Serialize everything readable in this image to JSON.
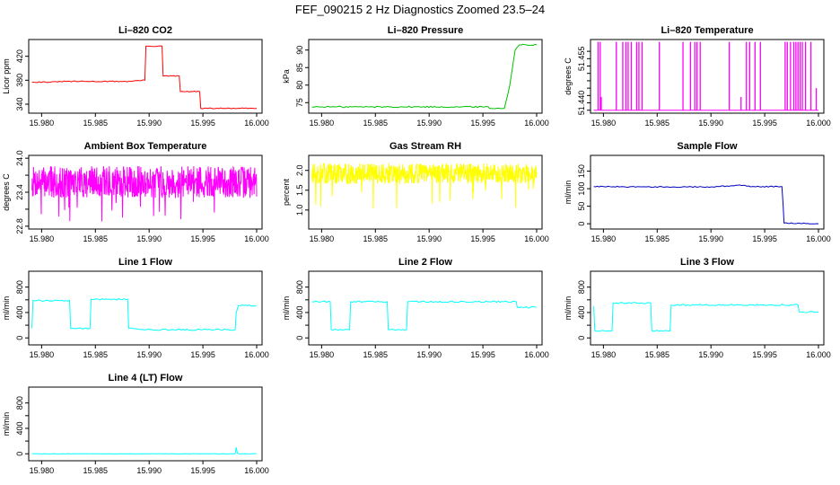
{
  "figure": {
    "title": "FEF_090215  2 Hz Diagnostics Zoomed 23.5–24"
  },
  "chart_data": [
    {
      "type": "line",
      "title": "Li–820 CO2",
      "ylabel": "Licor ppm",
      "xlim": [
        15.9788,
        16.0005
      ],
      "ylim": [
        325,
        448
      ],
      "x_ticks": [
        15.98,
        15.985,
        15.99,
        15.995,
        16.0
      ],
      "x_tick_labels": [
        "15.980",
        "15.985",
        "15.990",
        "15.995",
        "16.000"
      ],
      "y_ticks": [
        340,
        380,
        420
      ],
      "y_tick_labels": [
        "340",
        "380",
        "420"
      ],
      "color": "#ff0000",
      "noise": 0.8,
      "series": [
        {
          "name": "CO2",
          "x": [
            15.9791,
            15.9815,
            15.9816,
            15.9883,
            15.9886,
            15.9896,
            15.9897,
            15.9912,
            15.9913,
            15.9928,
            15.9929,
            15.9947,
            15.9948,
            16.0
          ],
          "y": [
            377,
            377,
            378,
            378,
            379,
            380,
            437,
            437,
            387,
            387,
            361,
            361,
            333,
            333
          ]
        }
      ]
    },
    {
      "type": "line",
      "title": "Li–820 Pressure",
      "ylabel": "kPa",
      "xlim": [
        15.9788,
        16.0005
      ],
      "ylim": [
        72,
        93
      ],
      "x_ticks": [
        15.98,
        15.985,
        15.99,
        15.995,
        16.0
      ],
      "x_tick_labels": [
        "15.980",
        "15.985",
        "15.990",
        "15.995",
        "16.000"
      ],
      "y_ticks": [
        75,
        80,
        85,
        90
      ],
      "y_tick_labels": [
        "75",
        "80",
        "85",
        "90"
      ],
      "color": "#00c000",
      "noise": 0.2,
      "series": [
        {
          "name": "Pressure",
          "x": [
            15.9791,
            15.9955,
            15.9956,
            15.997,
            15.9975,
            15.998,
            15.9984,
            16.0
          ],
          "y": [
            73.8,
            73.8,
            73.4,
            73.4,
            80,
            90,
            91.5,
            91.5
          ]
        }
      ]
    },
    {
      "type": "line",
      "title": "Li–820 Temperature",
      "ylabel": "degrees C",
      "xlim": [
        15.9788,
        16.0005
      ],
      "ylim": [
        51.4365,
        51.4615
      ],
      "x_ticks": [
        15.98,
        15.985,
        15.99,
        15.995,
        16.0
      ],
      "x_tick_labels": [
        "15.980",
        "15.985",
        "15.990",
        "15.995",
        "16.000"
      ],
      "y_ticks": [
        51.44,
        51.455
      ],
      "y_tick_labels": [
        "51.440",
        "51.455"
      ],
      "y_minor_ticks": [
        51.4375,
        51.4425,
        51.445,
        51.4475,
        51.45,
        51.4525,
        51.4575
      ],
      "color": "#ff00ff",
      "spikes": {
        "base": 51.4375,
        "top": 51.4607,
        "x": [
          15.9795,
          15.9797,
          15.9812,
          15.9818,
          15.9821,
          15.9823,
          15.9826,
          15.9831,
          15.9833,
          15.9836,
          15.9852,
          15.9874,
          15.9881,
          15.9885,
          15.9887,
          15.989,
          15.9917,
          15.9933,
          15.9936,
          15.9941,
          15.9946,
          15.9969,
          15.9971,
          15.9974,
          15.9977,
          15.9979,
          15.9981,
          15.9983,
          15.9985,
          15.9988,
          15.9993
        ],
        "partial": [
          {
            "x": 15.9798,
            "y": 51.442
          },
          {
            "x": 15.9928,
            "y": 51.442
          },
          {
            "x": 15.9998,
            "y": 51.445
          }
        ]
      },
      "series": []
    },
    {
      "type": "line",
      "title": "Ambient Box Temperature",
      "ylabel": "degrees C",
      "xlim": [
        15.9788,
        16.0005
      ],
      "ylim": [
        22.75,
        24.05
      ],
      "x_ticks": [
        15.98,
        15.985,
        15.99,
        15.995,
        16.0
      ],
      "x_tick_labels": [
        "15.980",
        "15.985",
        "15.990",
        "15.995",
        "16.000"
      ],
      "y_ticks": [
        22.8,
        23.4,
        24.0
      ],
      "y_tick_labels": [
        "22.8",
        "23.4",
        "24.0"
      ],
      "y_minor_ticks": [
        23.1,
        23.7
      ],
      "color": "#ff00ff",
      "band": {
        "center": 23.58,
        "spread": 0.28,
        "spike": 0.7,
        "seed": 7
      },
      "series": []
    },
    {
      "type": "line",
      "title": "Gas Stream RH",
      "ylabel": "percent",
      "xlim": [
        15.9788,
        16.0005
      ],
      "ylim": [
        0.52,
        2.38
      ],
      "x_ticks": [
        15.98,
        15.985,
        15.99,
        15.995,
        16.0
      ],
      "x_tick_labels": [
        "15.980",
        "15.985",
        "15.990",
        "15.995",
        "16.000"
      ],
      "y_ticks": [
        1.0,
        1.5,
        2.0
      ],
      "y_tick_labels": [
        "1.0",
        "1.5",
        "2.0"
      ],
      "color": "#ffff00",
      "band": {
        "center": 1.92,
        "spread": 0.26,
        "spike": 0.9,
        "seed": 13
      },
      "series": []
    },
    {
      "type": "line",
      "title": "Sample Flow",
      "ylabel": "ml/min",
      "xlim": [
        15.9788,
        16.0005
      ],
      "ylim": [
        -15,
        195
      ],
      "x_ticks": [
        15.98,
        15.985,
        15.99,
        15.995,
        16.0
      ],
      "x_tick_labels": [
        "15.980",
        "15.985",
        "15.990",
        "15.995",
        "16.000"
      ],
      "y_ticks": [
        0,
        50,
        100,
        150
      ],
      "y_tick_labels": [
        "0",
        "50",
        "100",
        "150"
      ],
      "color": "#0000c0",
      "noise": 1.5,
      "series": [
        {
          "name": "Sample Flow",
          "x": [
            15.9791,
            15.986,
            15.99,
            15.9918,
            15.9925,
            15.994,
            15.9965,
            15.9966,
            15.9967,
            15.9968,
            16.0
          ],
          "y": [
            106,
            105,
            105,
            108,
            110,
            106,
            106,
            106,
            60,
            2,
            0
          ]
        }
      ]
    },
    {
      "type": "line",
      "title": "Line 1 Flow",
      "ylabel": "ml/min",
      "xlim": [
        15.9788,
        16.0005
      ],
      "ylim": [
        -110,
        1050
      ],
      "x_ticks": [
        15.98,
        15.985,
        15.99,
        15.995,
        16.0
      ],
      "x_tick_labels": [
        "15.980",
        "15.985",
        "15.990",
        "15.995",
        "16.000"
      ],
      "y_ticks": [
        0,
        400,
        800
      ],
      "y_tick_labels": [
        "0",
        "400",
        "800"
      ],
      "y_minor_ticks": [
        200,
        600
      ],
      "color": "#00ffff",
      "width": 3,
      "noise": 12,
      "series": [
        {
          "name": "Line 1",
          "x": [
            15.9791,
            15.9792,
            15.9826,
            15.9827,
            15.9845,
            15.9846,
            15.988,
            15.9881,
            15.9895,
            15.998,
            15.9981,
            15.9983,
            16.0
          ],
          "y": [
            150,
            590,
            590,
            150,
            150,
            610,
            610,
            150,
            130,
            130,
            400,
            510,
            510
          ]
        }
      ]
    },
    {
      "type": "line",
      "title": "Line 2 Flow",
      "ylabel": "ml/min",
      "xlim": [
        15.9788,
        16.0005
      ],
      "ylim": [
        -110,
        1050
      ],
      "x_ticks": [
        15.98,
        15.985,
        15.99,
        15.995,
        16.0
      ],
      "x_tick_labels": [
        "15.980",
        "15.985",
        "15.990",
        "15.995",
        "16.000"
      ],
      "y_ticks": [
        0,
        400,
        800
      ],
      "y_tick_labels": [
        "0",
        "400",
        "800"
      ],
      "y_minor_ticks": [
        200,
        600
      ],
      "color": "#00ffff",
      "width": 3,
      "noise": 12,
      "series": [
        {
          "name": "Line 2",
          "x": [
            15.9791,
            15.9808,
            15.9809,
            15.9826,
            15.9827,
            15.9861,
            15.9862,
            15.9879,
            15.988,
            15.9981,
            15.9982,
            16.0
          ],
          "y": [
            570,
            570,
            130,
            130,
            570,
            570,
            130,
            130,
            570,
            570,
            480,
            480
          ]
        }
      ]
    },
    {
      "type": "line",
      "title": "Line 3 Flow",
      "ylabel": "ml/min",
      "xlim": [
        15.9788,
        16.0005
      ],
      "ylim": [
        -110,
        1050
      ],
      "x_ticks": [
        15.98,
        15.985,
        15.99,
        15.995,
        16.0
      ],
      "x_tick_labels": [
        "15.980",
        "15.985",
        "15.990",
        "15.995",
        "16.000"
      ],
      "y_ticks": [
        0,
        400,
        800
      ],
      "y_tick_labels": [
        "0",
        "400",
        "800"
      ],
      "y_minor_ticks": [
        200,
        600
      ],
      "color": "#00ffff",
      "width": 3,
      "noise": 12,
      "series": [
        {
          "name": "Line 3",
          "x": [
            15.9791,
            15.9792,
            15.9808,
            15.9809,
            15.9844,
            15.9845,
            15.9862,
            15.9863,
            15.9981,
            15.9982,
            16.0
          ],
          "y": [
            500,
            110,
            110,
            550,
            550,
            110,
            110,
            520,
            520,
            410,
            410
          ]
        }
      ]
    },
    {
      "type": "line",
      "title": "Line 4 (LT) Flow",
      "ylabel": "ml/min",
      "xlim": [
        15.9788,
        16.0005
      ],
      "ylim": [
        -110,
        1050
      ],
      "x_ticks": [
        15.98,
        15.985,
        15.99,
        15.995,
        16.0
      ],
      "x_tick_labels": [
        "15.980",
        "15.985",
        "15.990",
        "15.995",
        "16.000"
      ],
      "y_ticks": [
        0,
        400,
        800
      ],
      "y_tick_labels": [
        "0",
        "400",
        "800"
      ],
      "y_minor_ticks": [
        200,
        600
      ],
      "color": "#00ffff",
      "width": 2,
      "noise": 2,
      "series": [
        {
          "name": "Line 4",
          "x": [
            15.9791,
            15.998,
            15.9981,
            15.9982,
            15.9983,
            16.0
          ],
          "y": [
            0,
            0,
            100,
            10,
            0,
            0
          ]
        }
      ]
    }
  ]
}
